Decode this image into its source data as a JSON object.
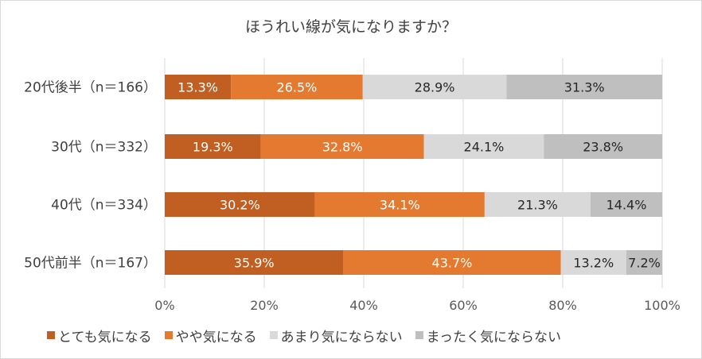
{
  "chart_data": {
    "type": "bar",
    "orientation": "horizontal",
    "stacked": true,
    "normalized": true,
    "title": "ほうれい線が気になりますか？",
    "categories": [
      "20代後半（n＝166）",
      "30代（n＝332）",
      "40代（n＝334）",
      "50代前半（n＝167）"
    ],
    "series": [
      {
        "name": "とても気になる",
        "values": [
          13.3,
          19.3,
          30.2,
          35.9
        ],
        "labels": [
          "13.3%",
          "19.3%",
          "30.2%",
          "35.9%"
        ],
        "color": "#c05f21",
        "label_color": "#ffffff"
      },
      {
        "name": "やや気になる",
        "values": [
          26.5,
          32.8,
          34.1,
          43.7
        ],
        "labels": [
          "26.5%",
          "32.8%",
          "34.1%",
          "43.7%"
        ],
        "color": "#e47a2f",
        "label_color": "#ffffff"
      },
      {
        "name": "あまり気にならない",
        "values": [
          28.9,
          24.1,
          21.3,
          13.2
        ],
        "labels": [
          "28.9%",
          "24.1%",
          "21.3%",
          "13.2%"
        ],
        "color": "#d9d9d9",
        "label_color": "#262626"
      },
      {
        "name": "まったく気にならない",
        "values": [
          31.3,
          23.8,
          14.4,
          7.2
        ],
        "labels": [
          "31.3%",
          "23.8%",
          "14.4%",
          "7.2%"
        ],
        "color": "#bfbfbf",
        "label_color": "#262626"
      }
    ],
    "xlim": [
      0,
      100
    ],
    "x_ticks": [
      "0%",
      "20%",
      "40%",
      "60%",
      "80%",
      "100%"
    ],
    "grid": true,
    "legend_position": "bottom"
  }
}
